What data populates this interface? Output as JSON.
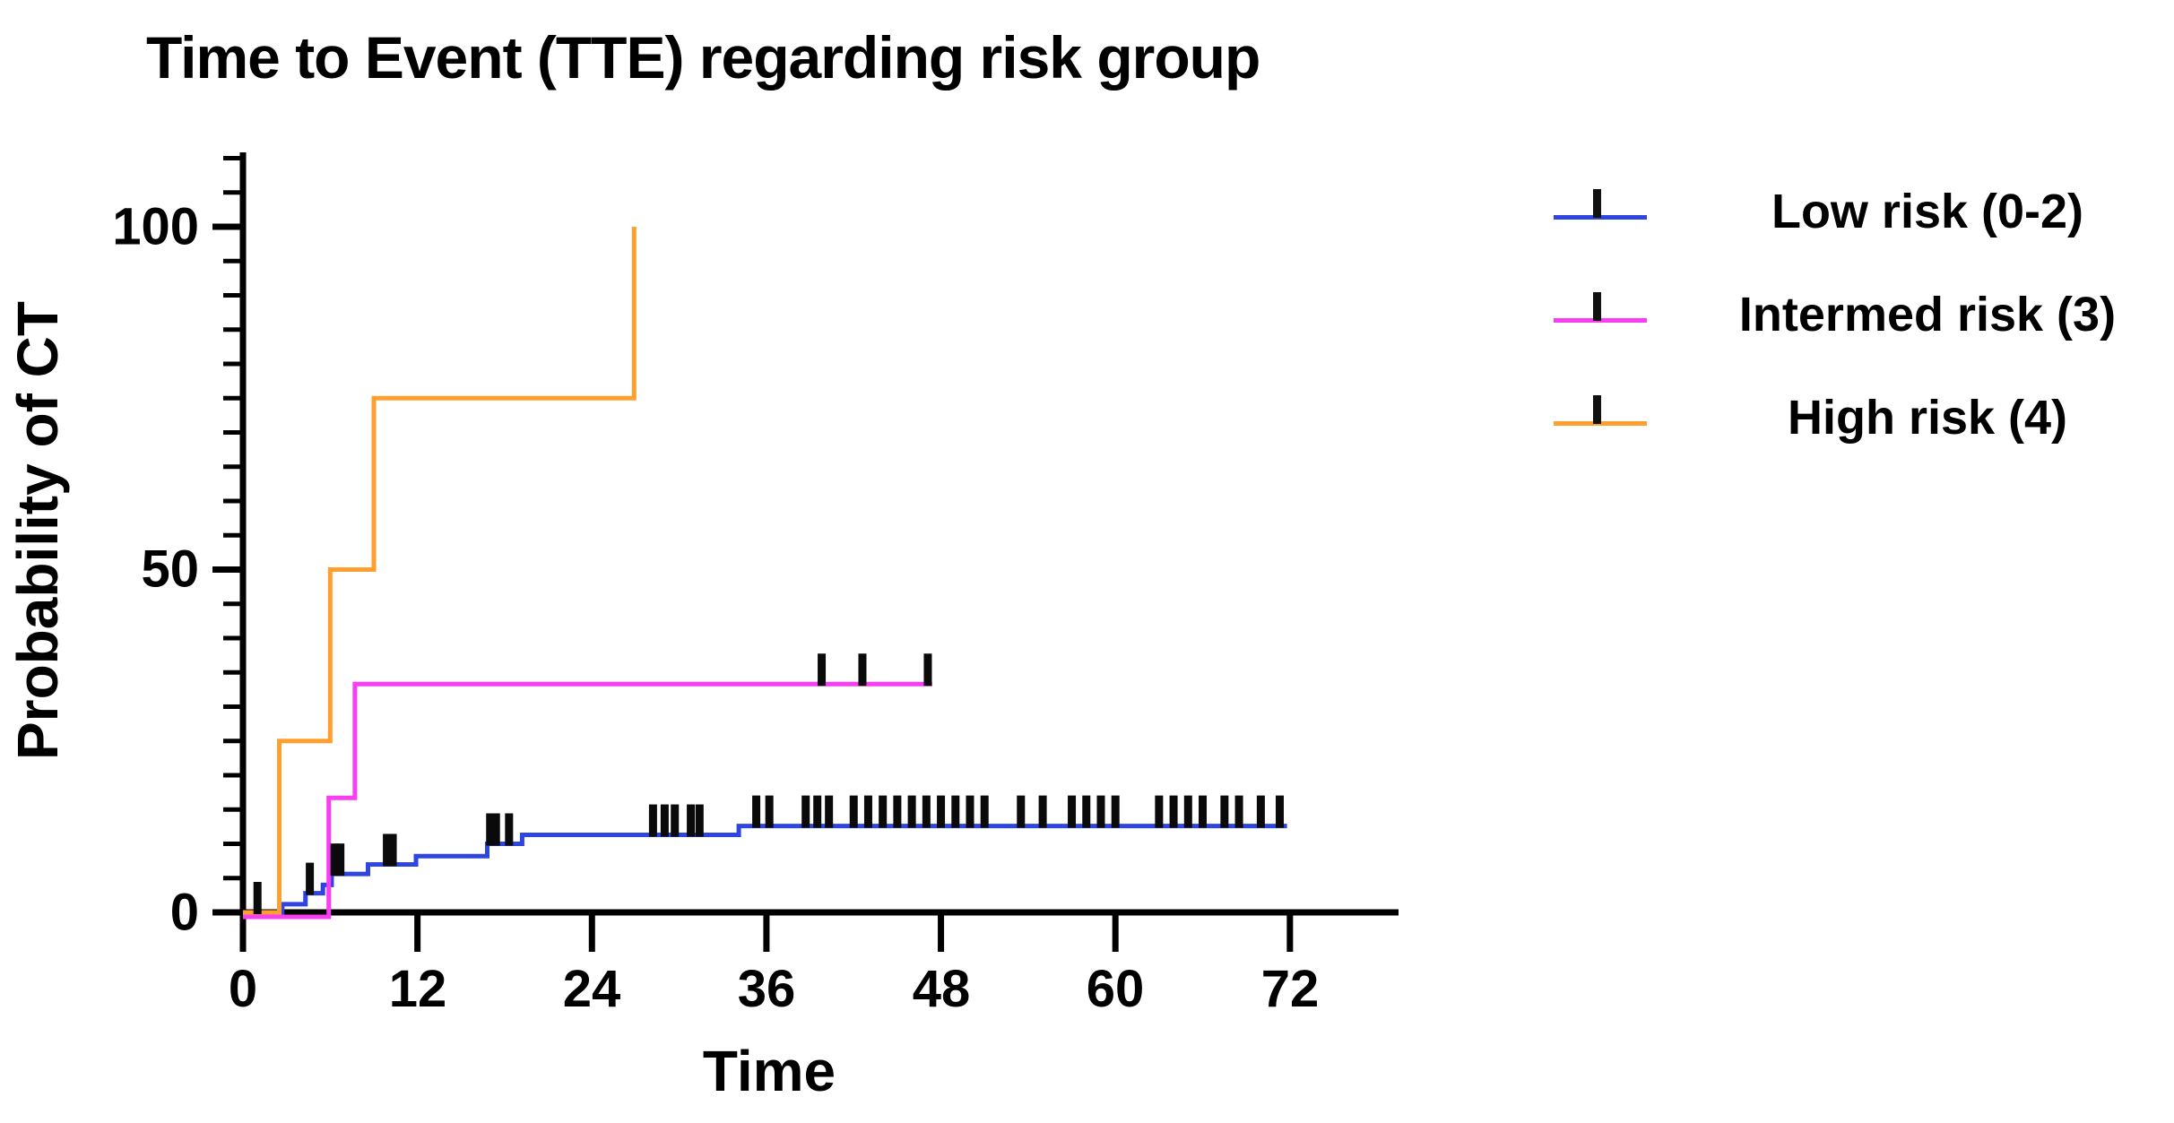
{
  "title": "Time to Event (TTE) regarding risk group",
  "x_axis": {
    "label": "Time",
    "ticks": [
      0,
      12,
      24,
      36,
      48,
      60,
      72
    ]
  },
  "y_axis": {
    "label": "Probability of CT",
    "ticks": [
      0,
      50,
      100
    ]
  },
  "legend": [
    {
      "label": "Low risk (0-2)",
      "color": "#2e45e0"
    },
    {
      "label": "Intermed risk (3)",
      "color": "#f93df3"
    },
    {
      "label": "High risk (4)",
      "color": "#ff9f30"
    }
  ],
  "chart_data": {
    "type": "line",
    "subtype": "kaplan-meier-step",
    "title": "Time to Event (TTE) regarding risk group",
    "xlabel": "Time",
    "ylabel": "Probability of CT",
    "xlim": [
      0,
      79
    ],
    "ylim": [
      0,
      110
    ],
    "x_ticks": [
      0,
      12,
      24,
      36,
      48,
      60,
      72
    ],
    "y_ticks": [
      0,
      50,
      100
    ],
    "y_minor_step": 5,
    "y_minor_max": 110,
    "grid": false,
    "legend_position": "right",
    "series": [
      {
        "name": "Low risk (0-2)",
        "color": "#2e45e0",
        "start": [
          0,
          0
        ],
        "steps": [
          [
            2.7,
            1.2
          ],
          [
            4.3,
            2.8
          ],
          [
            5.5,
            4.0
          ],
          [
            6.1,
            5.6
          ],
          [
            8.6,
            7.0
          ],
          [
            11.9,
            8.2
          ],
          [
            16.8,
            10.0
          ],
          [
            19.2,
            11.3
          ],
          [
            34.1,
            12.6
          ]
        ],
        "end_t": 71.8,
        "censor_times": [
          1.0,
          4.6,
          6.3,
          6.7,
          9.9,
          10.3,
          17.0,
          17.4,
          18.3,
          28.2,
          29.0,
          29.7,
          30.8,
          31.4,
          35.3,
          36.2,
          38.7,
          39.5,
          40.3,
          42.0,
          43.0,
          44.0,
          45.0,
          46.0,
          47.0,
          48.0,
          49.0,
          50.0,
          51.0,
          53.5,
          55.0,
          57.0,
          58.0,
          59.0,
          60.0,
          63.0,
          64.0,
          65.0,
          66.0,
          67.5,
          68.5,
          70.0,
          71.3
        ]
      },
      {
        "name": "Intermed risk (3)",
        "color": "#f93df3",
        "start": [
          0,
          0
        ],
        "steps": [
          [
            5.9,
            16.7
          ],
          [
            7.7,
            33.3
          ]
        ],
        "end_t": 47.4,
        "censor_times": [
          39.8,
          42.6,
          47.1
        ]
      },
      {
        "name": "High risk (4)",
        "color": "#ff9f30",
        "start": [
          0,
          0
        ],
        "steps": [
          [
            2.5,
            25
          ],
          [
            6.0,
            50
          ],
          [
            9.0,
            75
          ],
          [
            26.9,
            100
          ]
        ],
        "end_t": 26.9,
        "censor_times": []
      }
    ]
  }
}
